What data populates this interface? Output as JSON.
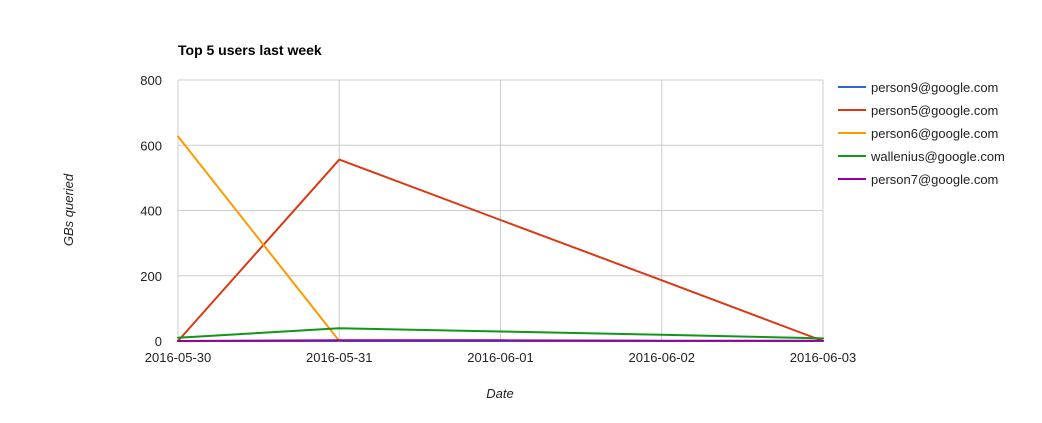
{
  "chart_data": {
    "type": "line",
    "title": "Top 5 users last week",
    "xlabel": "Date",
    "ylabel": "GBs queried",
    "x": [
      "2016-05-30",
      "2016-05-31",
      "2016-06-01",
      "2016-06-02",
      "2016-06-03"
    ],
    "ylim": [
      0,
      800
    ],
    "yticks": [
      0,
      200,
      400,
      600,
      800
    ],
    "grid": true,
    "legend_position": "right",
    "series": [
      {
        "name": "person9@google.com",
        "color": "#3366cc",
        "values": [
          0,
          0,
          0,
          0,
          0
        ]
      },
      {
        "name": "person5@google.com",
        "color": "#dc3912",
        "values": [
          0,
          556,
          371,
          186,
          0
        ]
      },
      {
        "name": "person6@google.com",
        "color": "#ff9900",
        "values": [
          627,
          0,
          null,
          null,
          null
        ]
      },
      {
        "name": "wallenius@google.com",
        "color": "#109618",
        "values": [
          10,
          39,
          29,
          19,
          8
        ]
      },
      {
        "name": "person7@google.com",
        "color": "#990099",
        "values": [
          0,
          2,
          2,
          1,
          1
        ]
      }
    ]
  }
}
